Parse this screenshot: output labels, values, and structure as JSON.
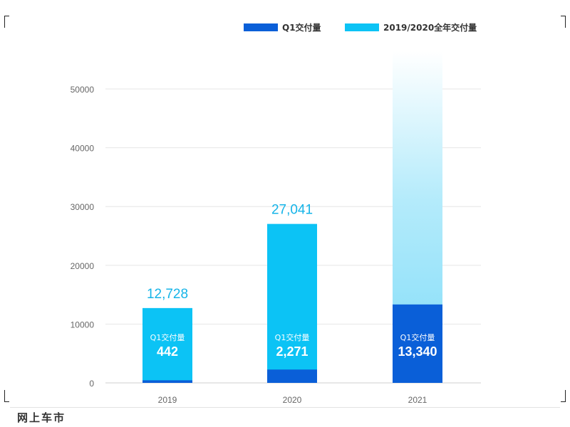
{
  "chart_data": {
    "type": "bar",
    "categories": [
      "2019",
      "2020",
      "2021"
    ],
    "series": [
      {
        "name": "Q1交付量",
        "values": [
          442,
          2271,
          13340
        ]
      },
      {
        "name": "2019/2020全年交付量",
        "values": [
          12728,
          27041,
          null
        ]
      }
    ],
    "inner_label": "Q1交付量",
    "top_labels": [
      "12,728",
      "27,041",
      ""
    ],
    "q1_labels": [
      "442",
      "2,271",
      "13,340"
    ],
    "yticks": [
      "0",
      "10000",
      "20000",
      "30000",
      "40000",
      "50000"
    ],
    "ylim": [
      0,
      57000
    ],
    "grid": true,
    "legend_position": "top-right",
    "colors": {
      "q1": "#0a5fd8",
      "annual": "#0cc3f5",
      "label": "#15b4e8",
      "axis_text": "#666666",
      "grid": "#e6e6e6"
    }
  },
  "watermark": "网上车市"
}
